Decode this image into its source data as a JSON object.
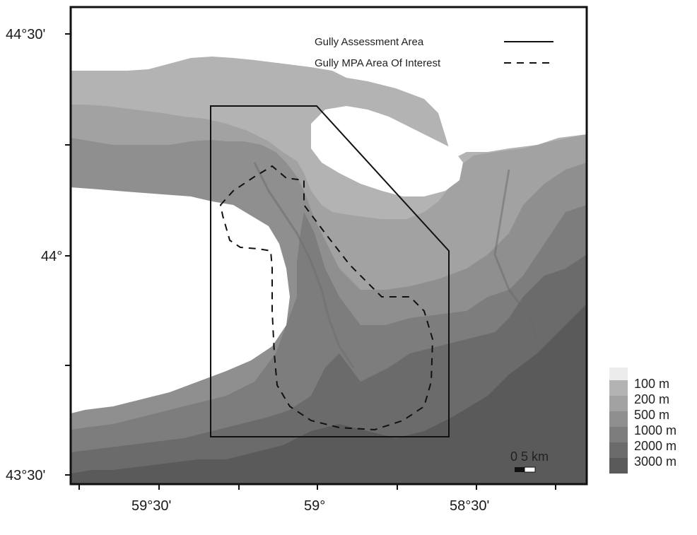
{
  "map": {
    "latitude_labels": [
      "44°30'",
      "44°",
      "43°30'"
    ],
    "longitude_labels": [
      "59°30'",
      "59°",
      "58°30'"
    ],
    "legend": [
      {
        "label": "Gully Assessment Area",
        "style": "solid"
      },
      {
        "label": "Gully MPA Area Of Interest",
        "style": "dashed"
      }
    ],
    "scale_bar": {
      "label": "0 5 km"
    },
    "depth_key": [
      {
        "label": "100 m",
        "color": "#b3b3b3"
      },
      {
        "label": "200 m",
        "color": "#a2a2a2"
      },
      {
        "label": "500 m",
        "color": "#8f8f8f"
      },
      {
        "label": "1000 m",
        "color": "#7d7d7d"
      },
      {
        "label": "2000 m",
        "color": "#6b6b6b"
      },
      {
        "label": "3000 m",
        "color": "#5a5a5a"
      }
    ],
    "colors": {
      "land_shallow": "#ffffff",
      "frame": "#111111"
    }
  }
}
